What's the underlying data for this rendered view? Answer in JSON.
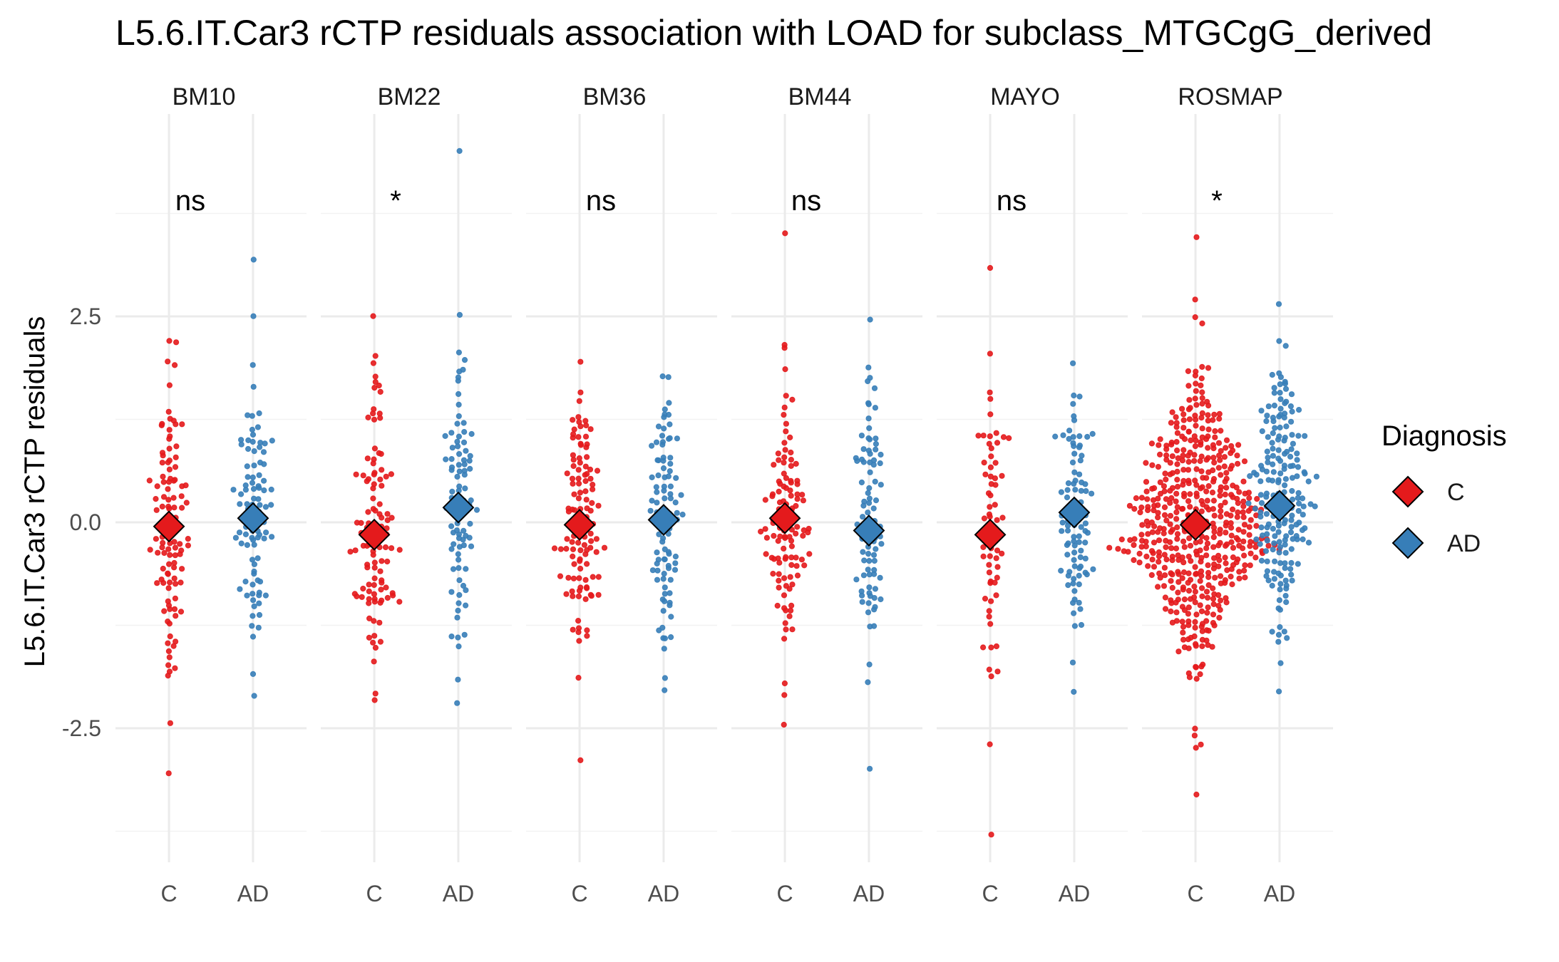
{
  "chart_data": {
    "type": "scatter",
    "title": "L5.6.IT.Car3 rCTP residuals association with LOAD for subclass_MTGCgG_derived",
    "xlabel": "",
    "ylabel": "L5.6.IT.Car3 rCTP residuals",
    "ylim": [
      -4.2,
      5.0
    ],
    "yticks": [
      2.5,
      0.0,
      -2.5
    ],
    "ytick_labels": [
      "2.5",
      "0.0",
      "-2.5"
    ],
    "categories": [
      "C",
      "AD"
    ],
    "grid": true,
    "legend": {
      "title": "Diagnosis",
      "position": "right",
      "entries": [
        {
          "label": "C",
          "color": "#e41a1c"
        },
        {
          "label": "AD",
          "color": "#377eb8"
        }
      ]
    },
    "panels": [
      {
        "name": "BM10",
        "significance": "ns",
        "means": {
          "C": -0.05,
          "AD": 0.05
        },
        "groups": {
          "C": {
            "n": 110,
            "min": -3.05,
            "max": 2.2,
            "outliers": [
              2.2,
              2.18,
              1.95,
              1.92,
              -2.45,
              -3.05,
              -1.85
            ]
          },
          "AD": {
            "n": 95,
            "min": -2.1,
            "max": 3.2,
            "outliers": [
              3.2,
              2.5,
              1.92,
              -2.1,
              -1.85
            ]
          }
        }
      },
      {
        "name": "BM22",
        "significance": "*",
        "means": {
          "C": -0.15,
          "AD": 0.18
        },
        "groups": {
          "C": {
            "n": 110,
            "min": -2.15,
            "max": 2.5,
            "outliers": [
              2.5,
              2.02,
              1.92,
              1.7,
              1.67,
              -2.15,
              -2.08
            ]
          },
          "AD": {
            "n": 90,
            "min": -2.2,
            "max": 4.5,
            "outliers": [
              4.5,
              2.52,
              2.05,
              1.98,
              -1.9,
              -2.2
            ]
          }
        }
      },
      {
        "name": "BM36",
        "significance": "ns",
        "means": {
          "C": -0.03,
          "AD": 0.03
        },
        "groups": {
          "C": {
            "n": 115,
            "min": -2.9,
            "max": 1.95,
            "outliers": [
              -2.9,
              -1.88,
              1.95
            ]
          },
          "AD": {
            "n": 95,
            "min": -2.05,
            "max": 1.78,
            "outliers": [
              -2.05,
              -1.9,
              1.78,
              1.75
            ]
          }
        }
      },
      {
        "name": "BM44",
        "significance": "ns",
        "means": {
          "C": 0.05,
          "AD": -0.1
        },
        "groups": {
          "C": {
            "n": 115,
            "min": -2.45,
            "max": 3.5,
            "outliers": [
              3.5,
              2.15,
              2.12,
              -2.45,
              -2.1,
              -1.95
            ]
          },
          "AD": {
            "n": 90,
            "min": -3.0,
            "max": 2.45,
            "outliers": [
              2.45,
              1.75,
              1.7,
              -3.0,
              -1.95
            ]
          }
        }
      },
      {
        "name": "MAYO",
        "significance": "ns",
        "means": {
          "C": -0.15,
          "AD": 0.12
        },
        "groups": {
          "C": {
            "n": 65,
            "min": -3.8,
            "max": 3.1,
            "outliers": [
              3.1,
              2.05,
              -3.8,
              -2.7,
              -1.78
            ]
          },
          "AD": {
            "n": 95,
            "min": -2.05,
            "max": 1.92,
            "outliers": [
              1.92,
              -2.05,
              -1.7
            ]
          }
        }
      },
      {
        "name": "ROSMAP",
        "significance": "*",
        "means": {
          "C": -0.03,
          "AD": 0.2
        },
        "groups": {
          "C": {
            "n": 520,
            "min": -3.3,
            "max": 3.45,
            "outliers": [
              3.45,
              2.7,
              2.48,
              2.42,
              -3.3,
              -2.75,
              -2.7,
              -2.6,
              -2.5
            ]
          },
          "AD": {
            "n": 200,
            "min": -2.05,
            "max": 2.65,
            "outliers": [
              2.65,
              2.2,
              2.15,
              -2.05,
              -1.7
            ]
          }
        }
      }
    ]
  }
}
